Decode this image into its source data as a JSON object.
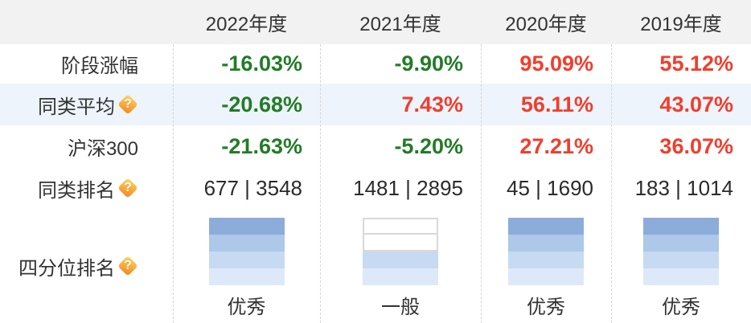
{
  "table": {
    "columns": [
      {
        "label": "2022年度"
      },
      {
        "label": "2021年度"
      },
      {
        "label": "2020年度"
      },
      {
        "label": "2019年度"
      }
    ],
    "rows": {
      "stage": {
        "label": "阶段涨幅",
        "values": [
          {
            "text": "-16.03%",
            "trend": "down"
          },
          {
            "text": "-9.90%",
            "trend": "down"
          },
          {
            "text": "95.09%",
            "trend": "up"
          },
          {
            "text": "55.12%",
            "trend": "up"
          }
        ]
      },
      "peer_avg": {
        "label": "同类平均",
        "values": [
          {
            "text": "-20.68%",
            "trend": "down"
          },
          {
            "text": "7.43%",
            "trend": "up"
          },
          {
            "text": "56.11%",
            "trend": "up"
          },
          {
            "text": "43.07%",
            "trend": "up"
          }
        ]
      },
      "hs300": {
        "label": "沪深300",
        "values": [
          {
            "text": "-21.63%",
            "trend": "down"
          },
          {
            "text": "-5.20%",
            "trend": "down"
          },
          {
            "text": "27.21%",
            "trend": "up"
          },
          {
            "text": "36.07%",
            "trend": "up"
          }
        ]
      },
      "peer_rank": {
        "label": "同类排名",
        "values": [
          {
            "text": "677 | 3548"
          },
          {
            "text": "1481 | 2895"
          },
          {
            "text": "45 | 1690"
          },
          {
            "text": "183 | 1014"
          }
        ]
      },
      "quartile": {
        "label": "四分位排名",
        "values": [
          {
            "grade": "优秀",
            "filled": 4
          },
          {
            "grade": "一般",
            "filled": 2
          },
          {
            "grade": "优秀",
            "filled": 4
          },
          {
            "grade": "优秀",
            "filled": 4
          }
        ]
      }
    }
  },
  "icons": {
    "help_glyph": "?",
    "help_name": "question-mark-badge-icon"
  },
  "colors": {
    "positive_red": "#f23d2d",
    "negative_green": "#227c26",
    "header_bg": "#f2f2f3",
    "highlight_row_bg": "#eef4fb",
    "separator": "#d5d5d5",
    "quartile_bar_colors": [
      "#8cacda",
      "#adc8e8",
      "#c6daf2",
      "#dde9f8"
    ],
    "quartile_empty_border": "#d9d9d9",
    "help_icon_orange": "#f0871d"
  }
}
